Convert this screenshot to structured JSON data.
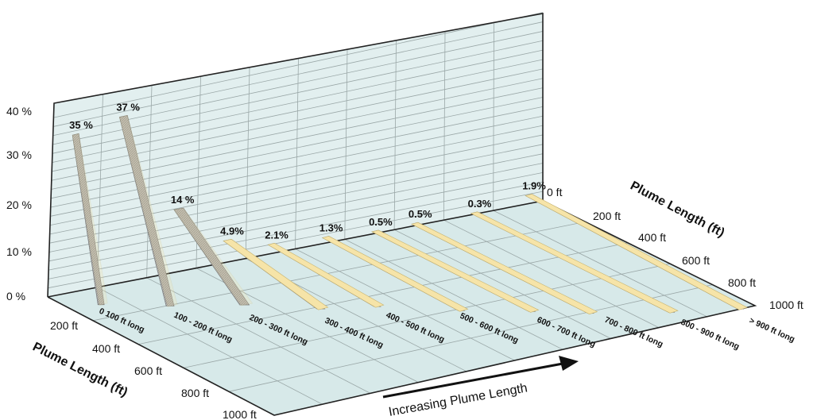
{
  "chart_data": {
    "type": "bar",
    "categories": [
      "0 100 ft long",
      "100 - 200 ft long",
      "200 - 300 ft long",
      "300 - 400 ft long",
      "400 - 500 ft long",
      "500 - 600 ft long",
      "600 - 700 ft long",
      "700 - 800 ft long",
      "800 - 900 ft long",
      "> 900 ft long"
    ],
    "values": [
      35,
      37,
      14,
      4.9,
      2.1,
      1.3,
      0.5,
      0.5,
      0.3,
      1.9
    ],
    "value_labels": [
      "35 %",
      "37 %",
      "14 %",
      "4.9%",
      "2.1%",
      "1.3%",
      "0.5%",
      "0.5%",
      "0.3%",
      "1.9%"
    ],
    "y_ticks": [
      "0 %",
      "10 %",
      "20 %",
      "30 %",
      "40 %"
    ],
    "ylim": [
      0,
      40
    ],
    "depth_ticks_left": [
      "200 ft",
      "400 ft",
      "600 ft",
      "800 ft",
      "1000 ft"
    ],
    "depth_ticks_right": [
      "0 ft",
      "200 ft",
      "400 ft",
      "600 ft",
      "800 ft",
      "1000 ft"
    ],
    "depth_axis_label_left": "Plume Length (ft)",
    "depth_axis_label_right": "Plume Length (ft)",
    "arrow_label": "Increasing Plume Length",
    "colors": {
      "wall": "#e2efef",
      "floor": "#d7e9e9",
      "bar_face": "#a9a9a9",
      "bar_top": "#f6e4a8",
      "grid": "#9aa7a7"
    }
  }
}
